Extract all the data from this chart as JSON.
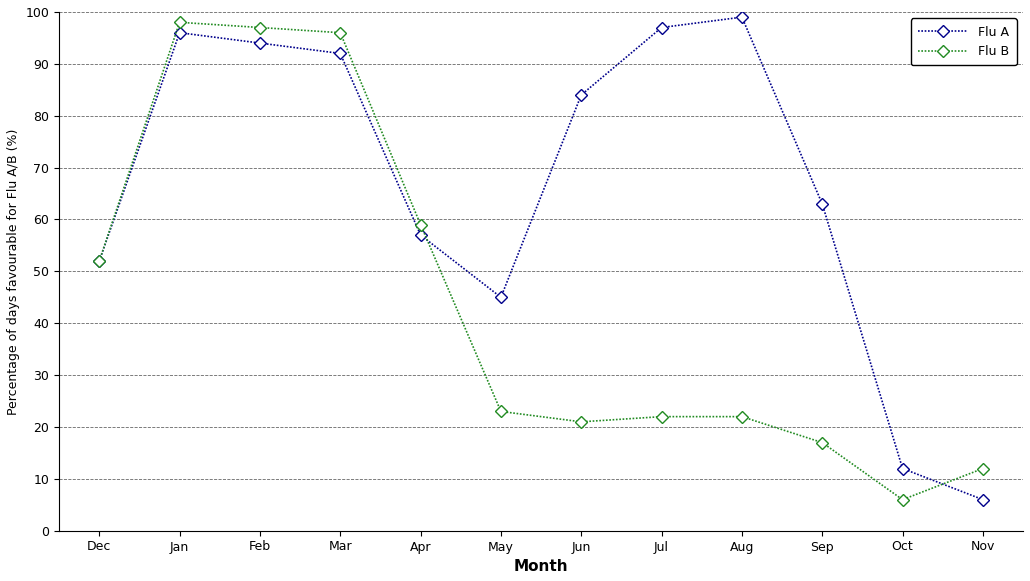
{
  "months": [
    "Dec",
    "Jan",
    "Feb",
    "Mar",
    "Apr",
    "May",
    "Jun",
    "Jul",
    "Aug",
    "Sep",
    "Oct",
    "Nov"
  ],
  "flu_a": [
    52,
    96,
    94,
    92,
    57,
    45,
    84,
    97,
    99,
    63,
    12,
    6
  ],
  "flu_b": [
    52,
    98,
    97,
    96,
    59,
    23,
    21,
    22,
    22,
    17,
    6,
    12
  ],
  "flu_a_color": "#00008B",
  "flu_b_color": "#228B22",
  "xlabel": "Month",
  "ylabel": "Percentage of days favourable for Flu A/B (%)",
  "ylim": [
    0,
    100
  ],
  "yticks": [
    0,
    10,
    20,
    30,
    40,
    50,
    60,
    70,
    80,
    90,
    100
  ],
  "legend_flu_a": "Flu A",
  "legend_flu_b": "Flu B",
  "figsize": [
    10.3,
    5.81
  ],
  "dpi": 100,
  "bg_color": "#FFFFFF",
  "grid_color": "#000000",
  "xlabel_fontsize": 11,
  "ylabel_fontsize": 9,
  "tick_fontsize": 9
}
